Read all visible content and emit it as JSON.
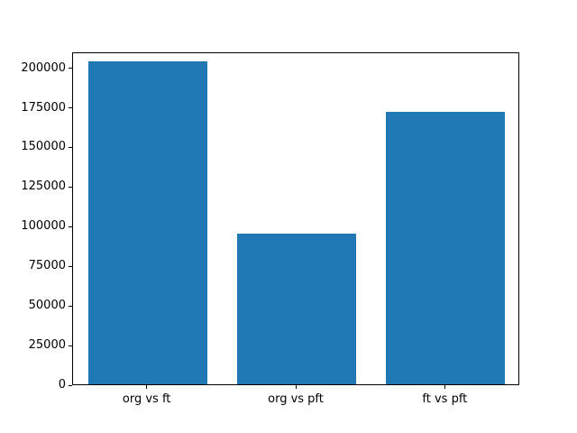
{
  "chart_data": {
    "type": "bar",
    "categories": [
      "org vs ft",
      "org vs pft",
      "ft vs pft"
    ],
    "values": [
      204000,
      95000,
      172000
    ],
    "title": "",
    "xlabel": "",
    "ylabel": "",
    "ylim": [
      0,
      210000
    ],
    "yticks": [
      0,
      25000,
      50000,
      75000,
      100000,
      125000,
      150000,
      175000,
      200000
    ],
    "bar_color": "#1f77b4",
    "grid": false,
    "legend_position": "none"
  }
}
